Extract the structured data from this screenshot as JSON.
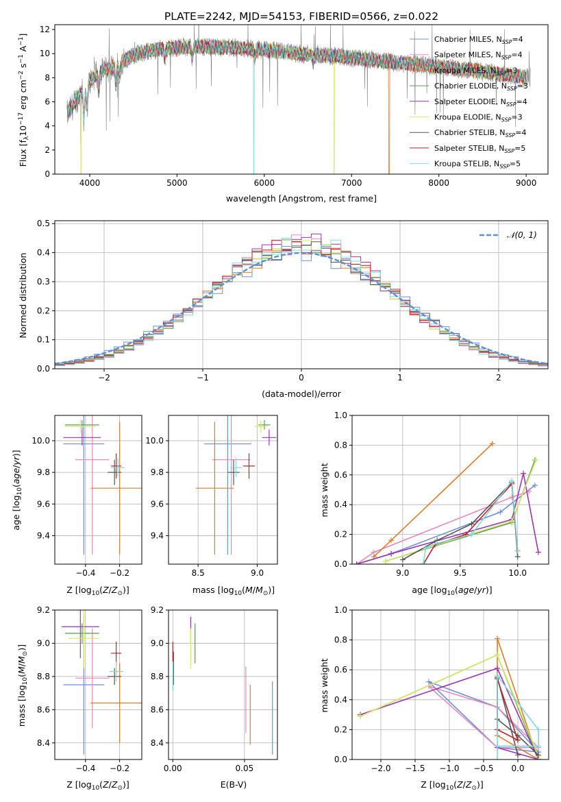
{
  "colors": {
    "Chabrier MILES": "#6b8fd8",
    "Salpeter MILES": "#e889b9",
    "Kroupa MILES": "#e07b2a",
    "Chabrier ELODIE": "#5a9e52",
    "Salpeter ELODIE": "#9b34b0",
    "Kroupa ELODIE": "#d7e86a",
    "Chabrier STELIB": "#555555",
    "Salpeter STELIB": "#c01f2a",
    "Kroupa STELIB": "#82d8d8",
    "data": "#808080",
    "normal": "#5a8fd6"
  },
  "chart_data": [
    {
      "type": "line",
      "id": "spectrum",
      "title": "PLATE=2242, MJD=54153, FIBERID=0566, z=0.022",
      "xlabel": "wavelength [Angstrom, rest frame]",
      "ylabel": "Flux [f_λ10^-17 erg cm^-2 s^-1 A^-1]",
      "xlim": [
        3600,
        9250
      ],
      "ylim": [
        0,
        12.4
      ],
      "xticks": [
        "4000",
        "5000",
        "6000",
        "7000",
        "8000",
        "9000"
      ],
      "yticks": [
        "0",
        "2",
        "4",
        "6",
        "8",
        "10",
        "12"
      ],
      "grid": false,
      "legend_position": "upper right",
      "legend": [
        {
          "model": "Chabrier MILES",
          "base": "Chabrier MILES, N",
          "n": "4"
        },
        {
          "model": "Salpeter MILES",
          "base": "Salpeter MILES, N",
          "n": "4"
        },
        {
          "model": "Kroupa MILES",
          "base": "Kroupa MILES, N",
          "n": "3"
        },
        {
          "model": "Chabrier ELODIE",
          "base": "Chabrier ELODIE, N",
          "n": "3"
        },
        {
          "model": "Salpeter ELODIE",
          "base": "Salpeter ELODIE, N",
          "n": "4"
        },
        {
          "model": "Kroupa ELODIE",
          "base": "Kroupa ELODIE, N",
          "n": "3"
        },
        {
          "model": "Chabrier STELIB",
          "base": "Chabrier STELIB, N",
          "n": "4"
        },
        {
          "model": "Salpeter STELIB",
          "base": "Salpeter STELIB, N",
          "n": "5"
        },
        {
          "model": "Kroupa STELIB",
          "base": "Kroupa STELIB, N",
          "n": "5"
        }
      ],
      "legend_subscript": "SSP",
      "continuum_shape": {
        "x": [
          3750,
          3850,
          3950,
          4100,
          4300,
          4500,
          4800,
          5200,
          5600,
          6000,
          6400,
          6800,
          7200,
          7600,
          8000,
          8400,
          8800,
          9000
        ],
        "y": [
          5.0,
          6.2,
          7.3,
          8.4,
          9.0,
          9.9,
          10.4,
          10.6,
          10.5,
          10.3,
          10.0,
          9.8,
          9.5,
          9.2,
          8.9,
          8.6,
          8.2,
          8.0
        ]
      },
      "model_wavelength_range": [
        3750,
        9000
      ],
      "data_wavelength_range": [
        3740,
        9050
      ],
      "model_dropouts": [
        {
          "x": 3900,
          "model": "Kroupa ELODIE"
        },
        {
          "x": 5880,
          "model": "Kroupa STELIB"
        },
        {
          "x": 6800,
          "model": "Kroupa ELODIE"
        },
        {
          "x": 7430,
          "model": "Kroupa MILES"
        }
      ]
    },
    {
      "type": "line",
      "id": "residuals",
      "xlabel": "(data-model)/error",
      "ylabel": "Normed distribution",
      "xlim": [
        -2.5,
        2.5
      ],
      "ylim": [
        0,
        0.51
      ],
      "xticks": [
        {
          "v": -2,
          "t": "−2"
        },
        {
          "v": -1,
          "t": "−1"
        },
        {
          "v": 0,
          "t": "0"
        },
        {
          "v": 1,
          "t": "1"
        },
        {
          "v": 2,
          "t": "2"
        }
      ],
      "yticks": [
        "0.0",
        "0.1",
        "0.2",
        "0.3",
        "0.4",
        "0.5"
      ],
      "grid": true,
      "legend_position": "upper right",
      "legend_label": "𝒩(0, 1)",
      "bin_width": 0.1,
      "series": [
        {
          "model": "Chabrier MILES",
          "sigma": 1.0
        },
        {
          "model": "Salpeter MILES",
          "sigma": 0.93
        },
        {
          "model": "Kroupa MILES",
          "sigma": 0.95
        },
        {
          "model": "Chabrier ELODIE",
          "sigma": 0.92
        },
        {
          "model": "Salpeter ELODIE",
          "sigma": 0.9
        },
        {
          "model": "Kroupa ELODIE",
          "sigma": 0.92
        },
        {
          "model": "Chabrier STELIB",
          "sigma": 0.96
        },
        {
          "model": "Salpeter STELIB",
          "sigma": 0.92
        },
        {
          "model": "Kroupa STELIB",
          "sigma": 0.9
        }
      ]
    },
    {
      "type": "scatter",
      "id": "age_vs_Z",
      "xlabel": "Z",
      "ylabel": "age",
      "xlim": [
        -0.58,
        -0.07
      ],
      "ylim": [
        9.22,
        10.16
      ],
      "xticks": [
        {
          "v": -0.4,
          "t": "−0.4"
        },
        {
          "v": -0.2,
          "t": "−0.2"
        }
      ],
      "yticks": [
        "9.4",
        "9.6",
        "9.8",
        "10.0"
      ],
      "grid": true,
      "points": [
        {
          "model": "Chabrier MILES",
          "x": -0.41,
          "xerr": 0.12,
          "y": 9.98,
          "yerr": 0.7
        },
        {
          "model": "Salpeter MILES",
          "x": -0.36,
          "xerr": 0.1,
          "y": 9.88,
          "yerr": 0.6
        },
        {
          "model": "Kroupa MILES",
          "x": -0.2,
          "xerr": 0.17,
          "y": 9.7,
          "yerr": 0.42
        },
        {
          "model": "Chabrier ELODIE",
          "x": -0.42,
          "xerr": 0.1,
          "y": 10.1,
          "yerr": 0.03
        },
        {
          "model": "Salpeter ELODIE",
          "x": -0.42,
          "xerr": 0.11,
          "y": 10.02,
          "yerr": 0.05
        },
        {
          "model": "Kroupa ELODIE",
          "x": -0.43,
          "xerr": 0.09,
          "y": 10.09,
          "yerr": 0.04
        },
        {
          "model": "Chabrier STELIB",
          "x": -0.23,
          "xerr": 0.04,
          "y": 9.8,
          "yerr": 0.08
        },
        {
          "model": "Salpeter STELIB",
          "x": -0.22,
          "xerr": 0.03,
          "y": 9.84,
          "yerr": 0.08
        },
        {
          "model": "Kroupa STELIB",
          "x": -0.21,
          "xerr": 0.04,
          "y": 9.83,
          "yerr": 0.06
        }
      ]
    },
    {
      "type": "scatter",
      "id": "age_vs_mass",
      "xlabel": "mass",
      "xlim": [
        8.25,
        9.17
      ],
      "ylim": [
        9.22,
        10.16
      ],
      "xticks": [
        "8.5",
        "9.0"
      ],
      "yticks": [
        "9.4",
        "9.6",
        "9.8",
        "10.0"
      ],
      "grid": true,
      "points": [
        {
          "model": "Chabrier MILES",
          "x": 8.75,
          "xerr": 0.2,
          "y": 9.98,
          "yerr": 0.7
        },
        {
          "model": "Salpeter MILES",
          "x": 8.78,
          "xerr": 0.16,
          "y": 9.88,
          "yerr": 0.6
        },
        {
          "model": "Kroupa MILES",
          "x": 8.64,
          "xerr": 0.16,
          "y": 9.7,
          "yerr": 0.42
        },
        {
          "model": "Chabrier ELODIE",
          "x": 9.06,
          "xerr": 0.05,
          "y": 10.1,
          "yerr": 0.03
        },
        {
          "model": "Salpeter ELODIE",
          "x": 9.1,
          "xerr": 0.06,
          "y": 10.02,
          "yerr": 0.05
        },
        {
          "model": "Kroupa ELODIE",
          "x": 9.03,
          "xerr": 0.05,
          "y": 10.09,
          "yerr": 0.04
        },
        {
          "model": "Chabrier STELIB",
          "x": 8.8,
          "xerr": 0.05,
          "y": 9.8,
          "yerr": 0.08
        },
        {
          "model": "Salpeter STELIB",
          "x": 8.93,
          "xerr": 0.05,
          "y": 9.84,
          "yerr": 0.08
        },
        {
          "model": "Kroupa STELIB",
          "x": 8.82,
          "xerr": 0.05,
          "y": 9.83,
          "yerr": 0.06
        }
      ]
    },
    {
      "type": "line",
      "id": "weight_vs_age",
      "xlabel": "age",
      "ylabel": "mass weight",
      "xlim": [
        8.56,
        10.27
      ],
      "ylim": [
        0,
        1.0
      ],
      "xticks": [
        "9.0",
        "9.5",
        "10.0"
      ],
      "yticks": [
        "0.0",
        "0.2",
        "0.4",
        "0.6",
        "0.8",
        "1.0"
      ],
      "grid": true,
      "series": [
        {
          "model": "Chabrier MILES",
          "x": [
            8.6,
            8.9,
            9.85,
            10.15
          ],
          "y": [
            0.0,
            0.07,
            0.35,
            0.53
          ]
        },
        {
          "model": "Salpeter MILES",
          "x": [
            8.6,
            8.75,
            9.95,
            10.1
          ],
          "y": [
            0.0,
            0.08,
            0.45,
            0.49
          ]
        },
        {
          "model": "Kroupa MILES",
          "x": [
            8.75,
            8.9,
            9.78
          ],
          "y": [
            0.05,
            0.16,
            0.81
          ]
        },
        {
          "model": "Chabrier ELODIE",
          "x": [
            8.85,
            9.95,
            10.15
          ],
          "y": [
            0.02,
            0.28,
            0.7
          ]
        },
        {
          "model": "Salpeter ELODIE",
          "x": [
            8.6,
            8.9,
            9.95,
            10.05,
            10.18
          ],
          "y": [
            0.0,
            0.07,
            0.3,
            0.61,
            0.08
          ]
        },
        {
          "model": "Kroupa ELODIE",
          "x": [
            8.85,
            9.95,
            10.16
          ],
          "y": [
            0.02,
            0.29,
            0.7
          ]
        },
        {
          "model": "Chabrier STELIB",
          "x": [
            9.0,
            9.3,
            9.6,
            9.95,
            10.0
          ],
          "y": [
            0.03,
            0.16,
            0.27,
            0.55,
            0.05
          ]
        },
        {
          "model": "Salpeter STELIB",
          "x": [
            9.18,
            9.28,
            9.55,
            9.95,
            10.0
          ],
          "y": [
            0.0,
            0.13,
            0.2,
            0.54,
            0.09
          ]
        },
        {
          "model": "Kroupa STELIB",
          "x": [
            9.18,
            9.2,
            9.3,
            9.6,
            9.95,
            10.0
          ],
          "y": [
            0.0,
            0.11,
            0.14,
            0.2,
            0.56,
            0.09
          ]
        }
      ]
    },
    {
      "type": "scatter",
      "id": "mass_vs_Z",
      "xlabel": "Z",
      "ylabel": "mass",
      "xlim": [
        -0.58,
        -0.07
      ],
      "ylim": [
        8.3,
        9.2
      ],
      "xticks": [
        {
          "v": -0.4,
          "t": "−0.4"
        },
        {
          "v": -0.2,
          "t": "−0.2"
        }
      ],
      "yticks": [
        "8.4",
        "8.6",
        "8.8",
        "9.0",
        "9.2"
      ],
      "grid": true,
      "points": [
        {
          "model": "Chabrier MILES",
          "x": -0.41,
          "xerr": 0.12,
          "y": 8.75,
          "yerr": 0.42
        },
        {
          "model": "Salpeter MILES",
          "x": -0.36,
          "xerr": 0.1,
          "y": 8.79,
          "yerr": 0.3
        },
        {
          "model": "Kroupa MILES",
          "x": -0.2,
          "xerr": 0.17,
          "y": 8.64,
          "yerr": 0.24
        },
        {
          "model": "Chabrier ELODIE",
          "x": -0.42,
          "xerr": 0.1,
          "y": 9.06,
          "yerr": 0.06
        },
        {
          "model": "Salpeter ELODIE",
          "x": -0.43,
          "xerr": 0.11,
          "y": 9.1,
          "yerr": 0.19
        },
        {
          "model": "Kroupa ELODIE",
          "x": -0.41,
          "xerr": 0.09,
          "y": 9.03,
          "yerr": 0.18
        },
        {
          "model": "Chabrier STELIB",
          "x": -0.23,
          "xerr": 0.04,
          "y": 8.8,
          "yerr": 0.05
        },
        {
          "model": "Salpeter STELIB",
          "x": -0.22,
          "xerr": 0.03,
          "y": 8.94,
          "yerr": 0.07
        },
        {
          "model": "Kroupa STELIB",
          "x": -0.22,
          "xerr": 0.04,
          "y": 8.83,
          "yerr": 0.06
        }
      ]
    },
    {
      "type": "scatter",
      "id": "mass_vs_EBV",
      "xlabel": "E(B-V)",
      "xlim": [
        -0.003,
        0.073
      ],
      "ylim": [
        8.3,
        9.2
      ],
      "xticks": [
        "0.00",
        "0.05"
      ],
      "yticks": [
        "8.4",
        "8.6",
        "8.8",
        "9.0",
        "9.2"
      ],
      "grid": true,
      "points": [
        {
          "model": "Chabrier MILES",
          "x": 0.0695,
          "y": 8.55,
          "yerr": 0.22
        },
        {
          "model": "Salpeter MILES",
          "x": 0.051,
          "y": 8.66,
          "yerr": 0.2
        },
        {
          "model": "Kroupa MILES",
          "x": 0.054,
          "y": 8.57,
          "yerr": 0.18
        },
        {
          "model": "Chabrier ELODIE",
          "x": 0.0155,
          "y": 9.0,
          "yerr": 0.12
        },
        {
          "model": "Salpeter ELODIE",
          "x": 0.0125,
          "y": 9.08,
          "yerr": 0.08
        },
        {
          "model": "Kroupa ELODIE",
          "x": 0.0125,
          "y": 8.97,
          "yerr": 0.12
        },
        {
          "model": "Chabrier STELIB",
          "x": 0.0005,
          "y": 8.85,
          "yerr": 0.1
        },
        {
          "model": "Salpeter STELIB",
          "x": 0.0,
          "y": 8.95,
          "yerr": 0.06
        },
        {
          "model": "Kroupa STELIB",
          "x": 0.0,
          "y": 8.8,
          "yerr": 0.09
        }
      ]
    },
    {
      "type": "line",
      "id": "weight_vs_Z",
      "xlabel": "Z",
      "ylabel": "mass weight",
      "xlim": [
        -2.42,
        0.45
      ],
      "ylim": [
        0,
        1.0
      ],
      "xticks": [
        {
          "v": -2.0,
          "t": "−2.0"
        },
        {
          "v": -1.5,
          "t": "−1.5"
        },
        {
          "v": -1.0,
          "t": "−1.0"
        },
        {
          "v": -0.5,
          "t": "−0.5"
        },
        {
          "v": 0.0,
          "t": "0.0"
        }
      ],
      "yticks": [
        "0.0",
        "0.2",
        "0.4",
        "0.6",
        "0.8",
        "1.0"
      ],
      "grid": true,
      "series": [
        {
          "model": "Chabrier MILES",
          "x": [
            0.3,
            -0.3,
            -1.3,
            -0.3,
            0.3
          ],
          "y": [
            0.05,
            0.35,
            0.52,
            0.08,
            0.05
          ]
        },
        {
          "model": "Salpeter MILES",
          "x": [
            0.3,
            -0.3,
            -1.3,
            -0.3,
            0.3
          ],
          "y": [
            0.08,
            0.35,
            0.49,
            0.08,
            0.08
          ]
        },
        {
          "model": "Kroupa MILES",
          "x": [
            0.3,
            -0.3,
            -0.3,
            0.3
          ],
          "y": [
            0.0,
            0.81,
            0.16,
            0.0
          ]
        },
        {
          "model": "Chabrier ELODIE",
          "x": [
            -2.3,
            -0.3,
            0.3
          ],
          "y": [
            0.29,
            0.7,
            0.0
          ]
        },
        {
          "model": "Salpeter ELODIE",
          "x": [
            -2.3,
            -0.3,
            0.3,
            -0.3
          ],
          "y": [
            0.3,
            0.61,
            0.0,
            0.08
          ]
        },
        {
          "model": "Kroupa ELODIE",
          "x": [
            -2.3,
            -0.3,
            0.3
          ],
          "y": [
            0.29,
            0.7,
            0.02
          ]
        },
        {
          "model": "Chabrier STELIB",
          "x": [
            0.0,
            -0.3,
            -0.3,
            0.0,
            0.3
          ],
          "y": [
            0.03,
            0.55,
            0.27,
            0.16,
            0.03
          ]
        },
        {
          "model": "Salpeter STELIB",
          "x": [
            0.0,
            -0.3,
            -0.3,
            0.0
          ],
          "y": [
            0.13,
            0.54,
            0.2,
            0.13
          ]
        },
        {
          "model": "Kroupa STELIB",
          "x": [
            -0.3,
            -0.3,
            0.3,
            0.3,
            -0.3
          ],
          "y": [
            0.0,
            0.56,
            0.2,
            0.09,
            0.09
          ]
        }
      ]
    }
  ]
}
